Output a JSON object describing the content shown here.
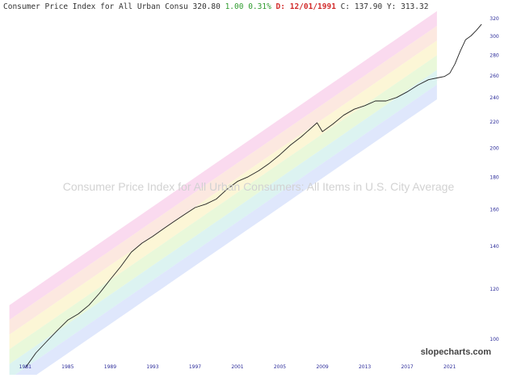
{
  "header": {
    "symbol_name": "Consumer Price Index for All Urban Consu",
    "last": "320.80",
    "change": "1.00",
    "change_pct": "0.31%",
    "date_label": "D:",
    "date": "12/01/1991",
    "c_label": "C:",
    "c_value": "137.90",
    "y_label": "Y:",
    "y_value": "313.32"
  },
  "watermark": "Consumer Price Index for All Urban Consumers: All Items in U.S. City Average",
  "brand": "slopecharts.com",
  "chart_data": {
    "type": "line",
    "title": "Consumer Price Index for All Urban Consumers: All Items in U.S. City Average",
    "xlabel": "",
    "ylabel": "",
    "y_scale": "log",
    "x_ticks": [
      "1981",
      "1985",
      "1989",
      "1993",
      "1997",
      "2001",
      "2005",
      "2009",
      "2013",
      "2017",
      "2021"
    ],
    "y_ticks": [
      100,
      120,
      140,
      160,
      180,
      200,
      220,
      240,
      260,
      280,
      300,
      320
    ],
    "xlim": [
      1980.9,
      2024.3
    ],
    "ylim": [
      92,
      330
    ],
    "grid": false,
    "legend": "none",
    "series": [
      {
        "x": [
          1981.0,
          1982.0,
          1983.0,
          1984.0,
          1985.0,
          1986.0,
          1987.0,
          1988.0,
          1989.0,
          1990.0,
          1991.0,
          1992.0,
          1993.0,
          1994.0,
          1995.0,
          1996.0,
          1997.0,
          1998.0,
          1999.0,
          2000.0,
          2001.0,
          2002.0,
          2003.0,
          2004.0,
          2005.0,
          2006.0,
          2007.0,
          2008.5,
          2009.0,
          2010.0,
          2011.0,
          2012.0,
          2013.0,
          2014.0,
          2015.0,
          2016.0,
          2017.0,
          2018.0,
          2019.0,
          2020.0,
          2020.5,
          2021.0,
          2021.5,
          2022.0,
          2022.5,
          2023.0,
          2023.5,
          2024.0
        ],
        "y": [
          90.0,
          95.0,
          99.0,
          103.0,
          107.0,
          109.5,
          113.0,
          118.0,
          124.0,
          130.0,
          137.0,
          141.5,
          145.0,
          149.0,
          153.0,
          157.0,
          161.0,
          163.0,
          166.0,
          172.0,
          177.0,
          180.0,
          184.0,
          189.0,
          195.0,
          202.0,
          208.0,
          219.0,
          212.0,
          218.0,
          225.0,
          230.0,
          233.0,
          237.0,
          237.0,
          240.0,
          245.0,
          251.0,
          256.0,
          258.0,
          259.0,
          262.0,
          271.0,
          284.0,
          296.0,
          300.0,
          306.0,
          313.0
        ],
        "color": "#222222"
      }
    ]
  }
}
